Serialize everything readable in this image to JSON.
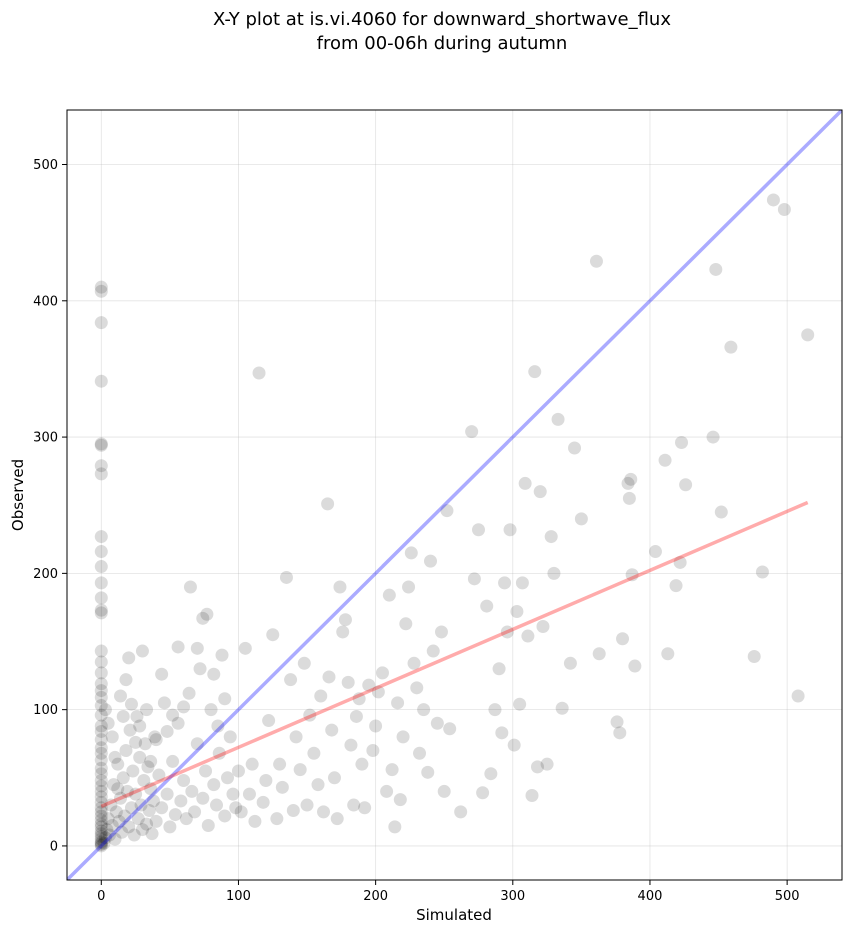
{
  "chart_data": {
    "type": "scatter",
    "title_line1": "X-Y plot at is.vi.4060 for downward_shortwave_flux",
    "title_line2": "from 00-06h during autumn",
    "xlabel": "Simulated",
    "ylabel": "Observed",
    "xlim": [
      -25,
      540
    ],
    "ylim": [
      -25,
      540
    ],
    "xticks": [
      0,
      100,
      200,
      300,
      400,
      500
    ],
    "yticks": [
      0,
      100,
      200,
      300,
      400,
      500
    ],
    "grid": true,
    "colors": {
      "points": "#000000",
      "identity_line": "#0000ff",
      "fit_line": "#ff0000"
    },
    "identity_line": {
      "x": [
        -25,
        540
      ],
      "y": [
        -25,
        540
      ]
    },
    "fit_line": {
      "x": [
        0,
        515
      ],
      "y": [
        29,
        252
      ]
    },
    "points": [
      [
        0,
        410
      ],
      [
        0,
        407
      ],
      [
        0,
        384
      ],
      [
        0,
        341
      ],
      [
        0,
        295
      ],
      [
        0,
        294
      ],
      [
        0,
        279
      ],
      [
        0,
        273
      ],
      [
        0,
        227
      ],
      [
        0,
        216
      ],
      [
        0,
        205
      ],
      [
        0,
        193
      ],
      [
        0,
        182
      ],
      [
        0,
        173
      ],
      [
        0,
        171
      ],
      [
        0,
        143
      ],
      [
        0,
        135
      ],
      [
        0,
        127
      ],
      [
        0,
        119
      ],
      [
        0,
        114
      ],
      [
        0,
        109
      ],
      [
        0,
        103
      ],
      [
        0,
        96
      ],
      [
        0,
        88
      ],
      [
        0,
        84
      ],
      [
        0,
        78
      ],
      [
        0,
        72
      ],
      [
        0,
        68
      ],
      [
        0,
        63
      ],
      [
        0,
        57
      ],
      [
        0,
        53
      ],
      [
        0,
        48
      ],
      [
        0,
        44
      ],
      [
        0,
        40
      ],
      [
        0,
        36
      ],
      [
        0,
        32
      ],
      [
        0,
        28
      ],
      [
        0,
        25
      ],
      [
        0,
        22
      ],
      [
        0,
        19
      ],
      [
        0,
        16
      ],
      [
        0,
        14
      ],
      [
        0,
        11
      ],
      [
        0,
        9
      ],
      [
        0,
        7
      ],
      [
        0,
        5
      ],
      [
        0,
        3
      ],
      [
        0,
        2
      ],
      [
        0,
        1
      ],
      [
        0,
        0
      ],
      [
        2,
        2
      ],
      [
        3,
        6
      ],
      [
        4,
        12
      ],
      [
        5,
        20
      ],
      [
        6,
        8
      ],
      [
        7,
        30
      ],
      [
        8,
        15
      ],
      [
        9,
        45
      ],
      [
        10,
        5
      ],
      [
        11,
        25
      ],
      [
        12,
        60
      ],
      [
        13,
        18
      ],
      [
        14,
        35
      ],
      [
        15,
        10
      ],
      [
        16,
        50
      ],
      [
        17,
        22
      ],
      [
        18,
        70
      ],
      [
        19,
        40
      ],
      [
        20,
        14
      ],
      [
        21,
        85
      ],
      [
        22,
        28
      ],
      [
        23,
        55
      ],
      [
        24,
        8
      ],
      [
        25,
        38
      ],
      [
        26,
        95
      ],
      [
        27,
        20
      ],
      [
        28,
        65
      ],
      [
        29,
        30
      ],
      [
        30,
        12
      ],
      [
        31,
        48
      ],
      [
        32,
        75
      ],
      [
        33,
        16
      ],
      [
        34,
        58
      ],
      [
        35,
        26
      ],
      [
        36,
        42
      ],
      [
        37,
        9
      ],
      [
        38,
        33
      ],
      [
        39,
        80
      ],
      [
        40,
        18
      ],
      [
        42,
        52
      ],
      [
        44,
        28
      ],
      [
        46,
        105
      ],
      [
        48,
        38
      ],
      [
        50,
        14
      ],
      [
        52,
        62
      ],
      [
        54,
        23
      ],
      [
        56,
        90
      ],
      [
        58,
        33
      ],
      [
        60,
        48
      ],
      [
        62,
        20
      ],
      [
        64,
        112
      ],
      [
        66,
        40
      ],
      [
        68,
        25
      ],
      [
        70,
        75
      ],
      [
        72,
        130
      ],
      [
        74,
        35
      ],
      [
        76,
        55
      ],
      [
        78,
        15
      ],
      [
        80,
        100
      ],
      [
        82,
        45
      ],
      [
        84,
        30
      ],
      [
        86,
        68
      ],
      [
        88,
        140
      ],
      [
        90,
        22
      ],
      [
        92,
        50
      ],
      [
        94,
        80
      ],
      [
        96,
        38
      ],
      [
        98,
        28
      ],
      [
        3,
        100
      ],
      [
        5,
        90
      ],
      [
        8,
        80
      ],
      [
        10,
        65
      ],
      [
        12,
        42
      ],
      [
        14,
        110
      ],
      [
        16,
        95
      ],
      [
        18,
        122
      ],
      [
        20,
        138
      ],
      [
        22,
        104
      ],
      [
        25,
        76
      ],
      [
        28,
        88
      ],
      [
        30,
        143
      ],
      [
        33,
        100
      ],
      [
        36,
        62
      ],
      [
        40,
        78
      ],
      [
        44,
        126
      ],
      [
        48,
        84
      ],
      [
        52,
        96
      ],
      [
        56,
        146
      ],
      [
        60,
        102
      ],
      [
        65,
        190
      ],
      [
        70,
        145
      ],
      [
        74,
        167
      ],
      [
        77,
        170
      ],
      [
        82,
        126
      ],
      [
        85,
        88
      ],
      [
        90,
        108
      ],
      [
        100,
        55
      ],
      [
        102,
        25
      ],
      [
        105,
        145
      ],
      [
        108,
        38
      ],
      [
        110,
        60
      ],
      [
        112,
        18
      ],
      [
        115,
        347
      ],
      [
        118,
        32
      ],
      [
        120,
        48
      ],
      [
        122,
        92
      ],
      [
        125,
        155
      ],
      [
        128,
        20
      ],
      [
        130,
        60
      ],
      [
        132,
        43
      ],
      [
        135,
        197
      ],
      [
        138,
        122
      ],
      [
        140,
        26
      ],
      [
        142,
        80
      ],
      [
        145,
        56
      ],
      [
        148,
        134
      ],
      [
        150,
        30
      ],
      [
        152,
        96
      ],
      [
        155,
        68
      ],
      [
        158,
        45
      ],
      [
        160,
        110
      ],
      [
        162,
        25
      ],
      [
        165,
        251
      ],
      [
        166,
        124
      ],
      [
        168,
        85
      ],
      [
        170,
        50
      ],
      [
        172,
        20
      ],
      [
        174,
        190
      ],
      [
        176,
        157
      ],
      [
        178,
        166
      ],
      [
        180,
        120
      ],
      [
        182,
        74
      ],
      [
        184,
        30
      ],
      [
        186,
        95
      ],
      [
        188,
        108
      ],
      [
        190,
        60
      ],
      [
        192,
        28
      ],
      [
        195,
        118
      ],
      [
        198,
        70
      ],
      [
        200,
        88
      ],
      [
        202,
        113
      ],
      [
        205,
        127
      ],
      [
        208,
        40
      ],
      [
        210,
        184
      ],
      [
        212,
        56
      ],
      [
        214,
        14
      ],
      [
        216,
        105
      ],
      [
        218,
        34
      ],
      [
        220,
        80
      ],
      [
        222,
        163
      ],
      [
        224,
        190
      ],
      [
        226,
        215
      ],
      [
        228,
        134
      ],
      [
        230,
        116
      ],
      [
        232,
        68
      ],
      [
        235,
        100
      ],
      [
        238,
        54
      ],
      [
        240,
        209
      ],
      [
        242,
        143
      ],
      [
        245,
        90
      ],
      [
        248,
        157
      ],
      [
        250,
        40
      ],
      [
        252,
        246
      ],
      [
        254,
        86
      ],
      [
        262,
        25
      ],
      [
        270,
        304
      ],
      [
        272,
        196
      ],
      [
        275,
        232
      ],
      [
        278,
        39
      ],
      [
        281,
        176
      ],
      [
        284,
        53
      ],
      [
        287,
        100
      ],
      [
        290,
        130
      ],
      [
        292,
        83
      ],
      [
        294,
        193
      ],
      [
        296,
        157
      ],
      [
        298,
        232
      ],
      [
        301,
        74
      ],
      [
        303,
        172
      ],
      [
        305,
        104
      ],
      [
        307,
        193
      ],
      [
        309,
        266
      ],
      [
        311,
        154
      ],
      [
        314,
        37
      ],
      [
        316,
        348
      ],
      [
        318,
        58
      ],
      [
        320,
        260
      ],
      [
        322,
        161
      ],
      [
        325,
        60
      ],
      [
        328,
        227
      ],
      [
        330,
        200
      ],
      [
        333,
        313
      ],
      [
        336,
        101
      ],
      [
        342,
        134
      ],
      [
        345,
        292
      ],
      [
        350,
        240
      ],
      [
        361,
        429
      ],
      [
        363,
        141
      ],
      [
        376,
        91
      ],
      [
        378,
        83
      ],
      [
        380,
        152
      ],
      [
        384,
        266
      ],
      [
        385,
        255
      ],
      [
        386,
        269
      ],
      [
        387,
        199
      ],
      [
        389,
        132
      ],
      [
        404,
        216
      ],
      [
        411,
        283
      ],
      [
        413,
        141
      ],
      [
        419,
        191
      ],
      [
        422,
        208
      ],
      [
        423,
        296
      ],
      [
        426,
        265
      ],
      [
        446,
        300
      ],
      [
        448,
        423
      ],
      [
        452,
        245
      ],
      [
        459,
        366
      ],
      [
        476,
        139
      ],
      [
        482,
        201
      ],
      [
        490,
        474
      ],
      [
        498,
        467
      ],
      [
        508,
        110
      ],
      [
        515,
        375
      ]
    ]
  }
}
